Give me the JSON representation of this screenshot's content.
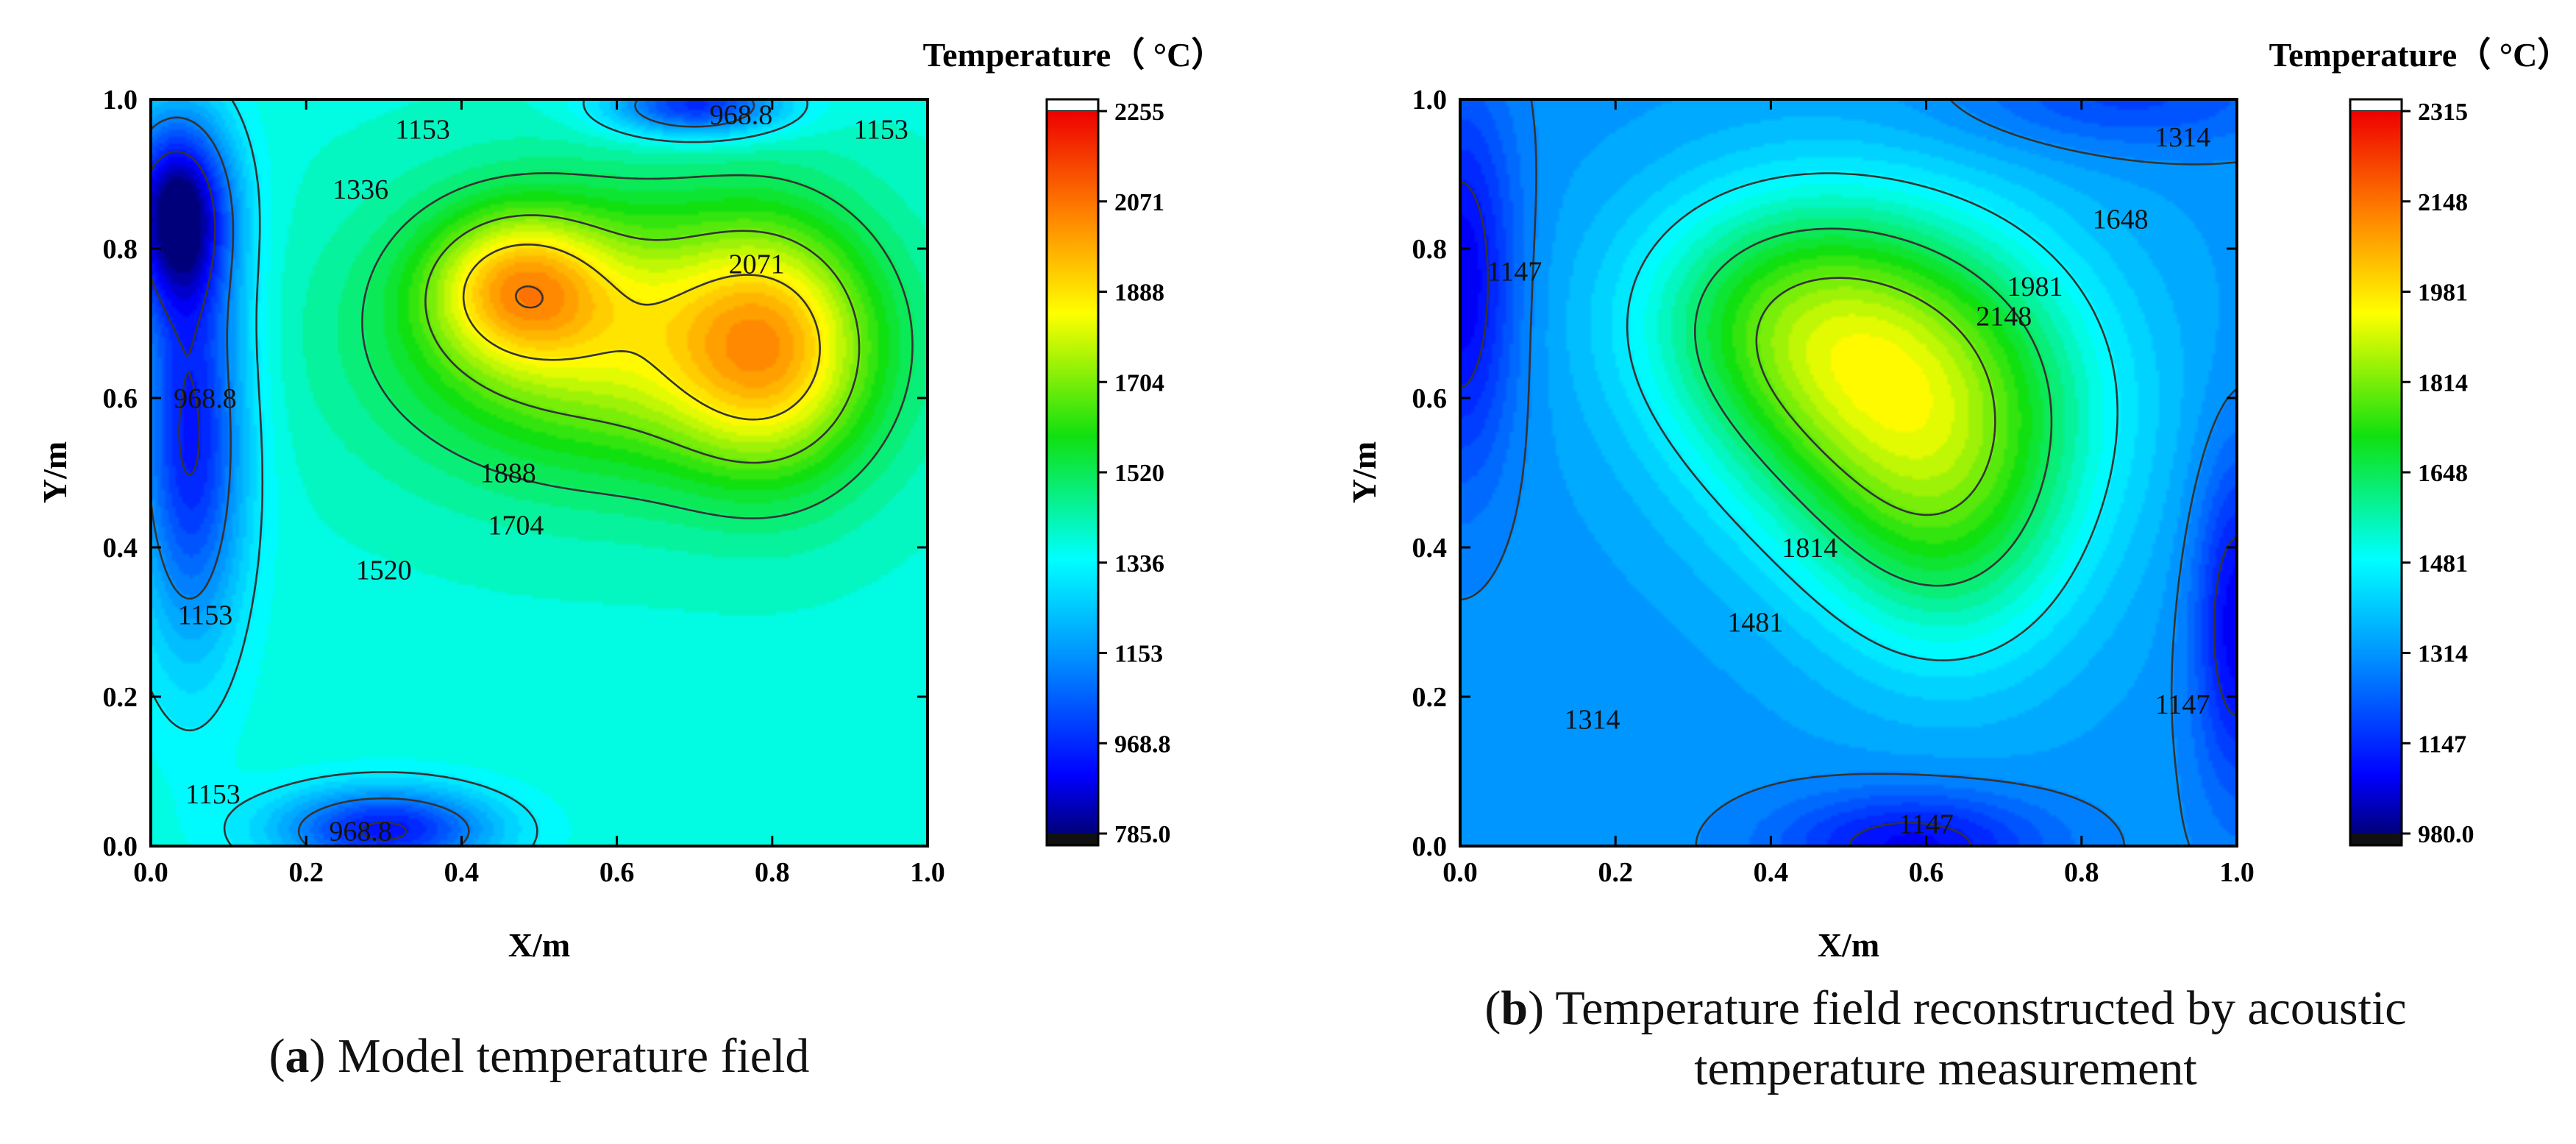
{
  "chart_data": [
    {
      "type": "heatmap",
      "id": "a",
      "panel_letter": "a",
      "caption": "Model temperature field",
      "xlabel": "X/m",
      "ylabel": "Y/m",
      "xlim": [
        0.0,
        1.0
      ],
      "ylim": [
        0.0,
        1.0
      ],
      "x_ticks": [
        "0.0",
        "0.2",
        "0.4",
        "0.6",
        "0.8",
        "1.0"
      ],
      "y_ticks": [
        "0.0",
        "0.2",
        "0.4",
        "0.6",
        "0.8",
        "1.0"
      ],
      "colorbar_title": "Temperature（ °C）",
      "colorbar_range": [
        785.0,
        2255.0
      ],
      "colorbar_ticks": [
        "785.0",
        "968.8",
        "1153",
        "1336",
        "1520",
        "1704",
        "1888",
        "2071",
        "2255"
      ],
      "field": {
        "background": 1400,
        "hot_spots": [
          {
            "x": 0.6,
            "y": 0.68,
            "peak": 2150,
            "sx": 0.2,
            "sy": 0.13
          },
          {
            "x": 0.8,
            "y": 0.66,
            "peak": 2120,
            "sx": 0.09,
            "sy": 0.12
          },
          {
            "x": 0.47,
            "y": 0.75,
            "peak": 2080,
            "sx": 0.08,
            "sy": 0.07
          }
        ],
        "cold_spots": [
          {
            "x": 0.03,
            "y": 0.85,
            "peak": 860,
            "sx": 0.05,
            "sy": 0.09
          },
          {
            "x": 0.05,
            "y": 0.55,
            "peak": 950,
            "sx": 0.05,
            "sy": 0.2
          },
          {
            "x": 0.3,
            "y": 0.02,
            "peak": 950,
            "sx": 0.1,
            "sy": 0.04
          },
          {
            "x": 0.7,
            "y": 0.99,
            "peak": 970,
            "sx": 0.08,
            "sy": 0.03
          }
        ]
      },
      "contour_levels": [
        968.8,
        1153,
        1336,
        1520,
        1704,
        1888,
        2071
      ],
      "contour_labels": [
        {
          "text": "968.8",
          "x": 0.07,
          "y": 0.6
        },
        {
          "text": "1153",
          "x": 0.07,
          "y": 0.31
        },
        {
          "text": "1153",
          "x": 0.08,
          "y": 0.07
        },
        {
          "text": "968.8",
          "x": 0.27,
          "y": 0.02
        },
        {
          "text": "1153",
          "x": 0.35,
          "y": 0.96
        },
        {
          "text": "968.8",
          "x": 0.76,
          "y": 0.98
        },
        {
          "text": "1153",
          "x": 0.94,
          "y": 0.96
        },
        {
          "text": "1336",
          "x": 0.27,
          "y": 0.88
        },
        {
          "text": "1520",
          "x": 0.3,
          "y": 0.37
        },
        {
          "text": "1704",
          "x": 0.47,
          "y": 0.43
        },
        {
          "text": "1888",
          "x": 0.46,
          "y": 0.5
        },
        {
          "text": "2071",
          "x": 0.78,
          "y": 0.78
        }
      ]
    },
    {
      "type": "heatmap",
      "id": "b",
      "panel_letter": "b",
      "caption": "Temperature field reconstructed by acoustic temperature measurement",
      "caption_lines": [
        "Temperature field reconstructed by acoustic",
        "temperature measurement"
      ],
      "xlabel": "X/m",
      "ylabel": "Y/m",
      "xlim": [
        0.0,
        1.0
      ],
      "ylim": [
        0.0,
        1.0
      ],
      "x_ticks": [
        "0.0",
        "0.2",
        "0.4",
        "0.6",
        "0.8",
        "1.0"
      ],
      "y_ticks": [
        "0.0",
        "0.2",
        "0.4",
        "0.6",
        "0.8",
        "1.0"
      ],
      "colorbar_title": "Temperature（ °C）",
      "colorbar_range": [
        980.0,
        2315.0
      ],
      "colorbar_ticks": [
        "980.0",
        "1147",
        "1314",
        "1481",
        "1648",
        "1814",
        "1981",
        "2148",
        "2315"
      ],
      "field": {
        "background": 1330,
        "hot_spots": [
          {
            "x": 0.57,
            "y": 0.61,
            "peak": 2250,
            "sx": 0.17,
            "sy": 0.16
          },
          {
            "x": 0.63,
            "y": 0.4,
            "peak": 1700,
            "sx": 0.12,
            "sy": 0.14
          },
          {
            "x": 0.4,
            "y": 0.72,
            "peak": 1780,
            "sx": 0.14,
            "sy": 0.12
          }
        ],
        "cold_spots": [
          {
            "x": 0.0,
            "y": 0.75,
            "peak": 1080,
            "sx": 0.05,
            "sy": 0.18
          },
          {
            "x": 1.0,
            "y": 0.3,
            "peak": 1080,
            "sx": 0.04,
            "sy": 0.16
          },
          {
            "x": 0.58,
            "y": 0.0,
            "peak": 1100,
            "sx": 0.12,
            "sy": 0.05
          },
          {
            "x": 0.85,
            "y": 1.0,
            "peak": 1200,
            "sx": 0.15,
            "sy": 0.05
          }
        ]
      },
      "contour_levels": [
        1147,
        1314,
        1481,
        1648,
        1814,
        1981,
        2148
      ],
      "contour_labels": [
        {
          "text": "1147",
          "x": 0.07,
          "y": 0.77
        },
        {
          "text": "1314",
          "x": 0.93,
          "y": 0.95
        },
        {
          "text": "1648",
          "x": 0.85,
          "y": 0.84
        },
        {
          "text": "1981",
          "x": 0.74,
          "y": 0.75
        },
        {
          "text": "2148",
          "x": 0.7,
          "y": 0.71
        },
        {
          "text": "1814",
          "x": 0.45,
          "y": 0.4
        },
        {
          "text": "1481",
          "x": 0.38,
          "y": 0.3
        },
        {
          "text": "1314",
          "x": 0.17,
          "y": 0.17
        },
        {
          "text": "1147",
          "x": 0.93,
          "y": 0.19
        },
        {
          "text": "1147",
          "x": 0.6,
          "y": 0.03
        }
      ]
    }
  ]
}
